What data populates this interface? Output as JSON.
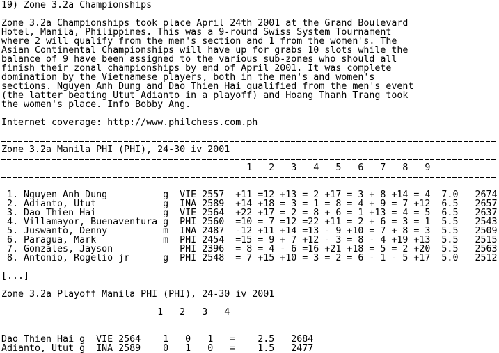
{
  "title": "19) Zone 3.2a Championships",
  "paragraph": [
    "Zone 3.2a Championships took place April 24th 2001 at the Grand Boulevard",
    "Hotel, Manila, Philippines. This was a 9-round Swiss System Tournament",
    "where 2 will qualify from the men's section and 1 from the women's. The",
    "Asian Continental Championships will have up for grabs 10 slots while the",
    "balance of 9 have been assigned to the various sub-zones who should all",
    "finish their zonal championships by end of April 2001. It was complete",
    "domination by the Vietnamese players, both in the men's and women's",
    "sections. Nguyen Anh Dung and Dao Thien Hai qualified from the men's event",
    "(the latter beating Utut Adianto in a playoff) and Hoang Thanh Trang took",
    "the women's place. Info Bobby Ang."
  ],
  "coverage": "Internet coverage: http://www.philchess.com.ph",
  "table1": {
    "title": "Zone 3.2a Manila PHI (PHI), 24-30 iv 2001",
    "header": "                                            1   2   3   4   5   6   7   8   9",
    "rows": [
      " 1. Nguyen Anh Dung          g  VIE 2557  +11 =12 +13 = 2 +17 = 3 + 8 +14 = 4  7.0   2674",
      " 2. Adianto, Utut            g  INA 2589  +14 +18 = 3 = 1 = 8 = 4 + 9 = 7 +12  6.5   2657",
      " 3. Dao Thien Hai            g  VIE 2564  +22 +17 = 2 = 8 + 6 = 1 +13 = 4 = 5  6.5   2637",
      " 4. Villamayor, Buenaventura g  PHI 2560  =10 = 7 =12 =22 +11 = 2 + 6 = 3 = 1  5.5   2543",
      " 5. Juswanto, Denny          m  INA 2487  -12 +11 +14 =13 - 9 +10 = 7 + 8 = 3  5.5   2509",
      " 6. Paragua, Mark            m  PHI 2454  =15 = 9 + 7 +12 - 3 = 8 - 4 +19 +13  5.5   2515",
      " 7. Gonzales, Jayson            PHI 2396  = 8 = 4 - 6 =16 +21 +18 = 5 = 2 +20  5.5   2563",
      " 8. Antonio, Rogelio jr      g  PHI 2548  = 7 +15 +10 = 3 = 2 = 6 - 1 - 5 +17  5.0   2512"
    ]
  },
  "ellipsis": "[...]",
  "table2": {
    "title": "Zone 3.2a Playoff Manila PHI (PHI), 24-30 iv 2001",
    "header": "                            1   2   3   4",
    "rows": [
      "Dao Thien Hai g  VIE 2564    1   0   1   =    2.5   2684",
      "Adianto, Utut g  INA 2589    0   1   0   =    1.5   2477"
    ]
  }
}
